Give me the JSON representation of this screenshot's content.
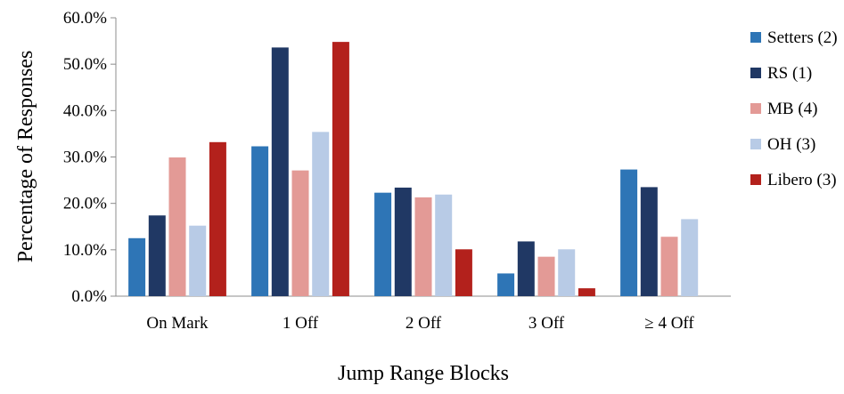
{
  "chart_data": {
    "type": "bar",
    "title": "",
    "xlabel": "Jump Range Blocks",
    "ylabel": "Percentage of Responses",
    "ylim": [
      0,
      60
    ],
    "y_ticks": [
      0,
      10,
      20,
      30,
      40,
      50,
      60
    ],
    "y_tick_labels": [
      "0.0%",
      "10.0%",
      "20.0%",
      "30.0%",
      "40.0%",
      "50.0%",
      "60.0%"
    ],
    "grid": false,
    "legend_position": "right",
    "categories": [
      "On Mark",
      "1 Off",
      "2 Off",
      "3 Off",
      "≥ 4 Off"
    ],
    "series": [
      {
        "name": "Setters (2)",
        "color": "#2e75b6",
        "values": [
          12.5,
          32.3,
          22.3,
          4.9,
          27.3
        ]
      },
      {
        "name": "RS (1)",
        "color": "#203864",
        "values": [
          17.4,
          53.6,
          23.4,
          11.8,
          23.5
        ]
      },
      {
        "name": "MB (4)",
        "color": "#e39a96",
        "values": [
          29.9,
          27.1,
          21.3,
          8.5,
          12.8
        ]
      },
      {
        "name": "OH (3)",
        "color": "#b8cbe6",
        "values": [
          15.2,
          35.4,
          21.9,
          10.1,
          16.6
        ]
      },
      {
        "name": "Libero (3)",
        "color": "#b3211c",
        "values": [
          33.2,
          54.8,
          10.1,
          1.7,
          0
        ]
      }
    ]
  }
}
